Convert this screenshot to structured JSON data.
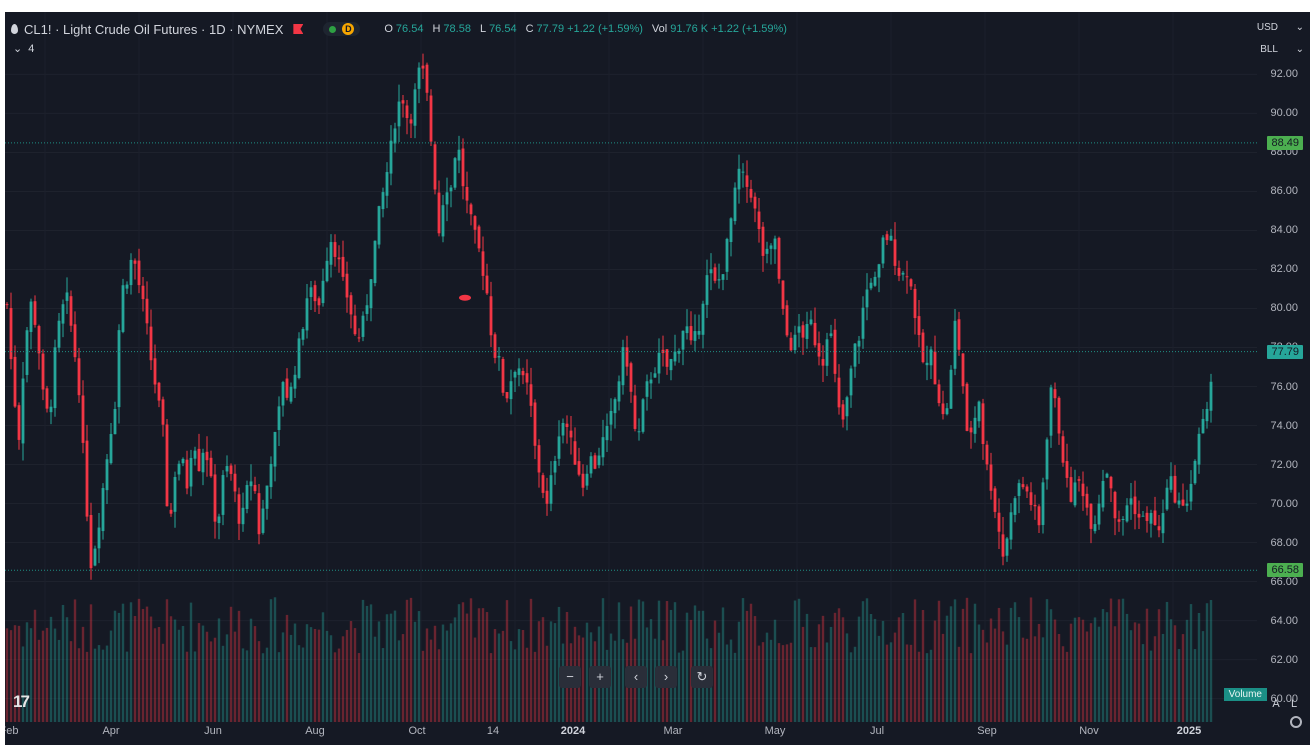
{
  "header": {
    "symbol_title": "CL1! · Light Crude Oil Futures · 1D · NYMEX",
    "status_badge": "D",
    "ohlc": {
      "open_label": "O",
      "open": "76.54",
      "high_label": "H",
      "high": "78.58",
      "low_label": "L",
      "low": "76.54",
      "close_label": "C",
      "close": "77.79",
      "change": "+1.22 (+1.59%)",
      "vol_label": "Vol",
      "volume": "91.76 K",
      "vol_change": "+1.22 (+1.59%)"
    },
    "indicator_count": "4"
  },
  "axis_controls": {
    "currency": "USD",
    "unit": "BLL"
  },
  "price_badges": {
    "resistance": "88.49",
    "current": "77.79",
    "support": "66.58"
  },
  "volume_label": "Volume",
  "scale_modes": {
    "auto": "A",
    "log": "L"
  },
  "nav_buttons": {
    "zoom_out": "−",
    "zoom_in": "+",
    "back": "‹",
    "forward": "›",
    "reset": "↻"
  },
  "logo_text": "17",
  "colors": {
    "up": "#26a69a",
    "down": "#f23645",
    "background": "#151924",
    "badge_green": "#4caf50",
    "hline": "#1f8f84"
  },
  "chart_data": {
    "type": "candlestick",
    "symbol": "CL1!",
    "ylim": [
      58.8,
      95.2
    ],
    "y_ticks": [
      "92.00",
      "90.00",
      "88.00",
      "86.00",
      "84.00",
      "82.00",
      "80.00",
      "78.00",
      "76.00",
      "74.00",
      "72.00",
      "70.00",
      "68.00",
      "66.00",
      "64.00",
      "62.00",
      "60.00"
    ],
    "x_ticks": [
      "Feb",
      "Apr",
      "Jun",
      "Aug",
      "Oct",
      "14",
      "2024",
      "Mar",
      "May",
      "Jul",
      "Sep",
      "Nov",
      "2025"
    ],
    "horizontal_lines": [
      88.49,
      77.79,
      66.58
    ],
    "close_path": [
      [
        0,
        80.2
      ],
      [
        6,
        76.0
      ],
      [
        12,
        73.5
      ],
      [
        18,
        78.3
      ],
      [
        24,
        80.2
      ],
      [
        30,
        79.0
      ],
      [
        36,
        75.5
      ],
      [
        42,
        74.2
      ],
      [
        48,
        77.6
      ],
      [
        54,
        79.8
      ],
      [
        60,
        80.4
      ],
      [
        66,
        78.4
      ],
      [
        72,
        76.0
      ],
      [
        78,
        71.0
      ],
      [
        84,
        67.0
      ],
      [
        90,
        68.4
      ],
      [
        96,
        70.8
      ],
      [
        102,
        73.2
      ],
      [
        108,
        75.2
      ],
      [
        114,
        80.8
      ],
      [
        120,
        81.6
      ],
      [
        126,
        82.8
      ],
      [
        132,
        81.2
      ],
      [
        138,
        79.6
      ],
      [
        144,
        77.4
      ],
      [
        150,
        75.6
      ],
      [
        156,
        73.6
      ],
      [
        162,
        68.4
      ],
      [
        168,
        71.6
      ],
      [
        174,
        72.4
      ],
      [
        180,
        71.0
      ],
      [
        186,
        73.6
      ],
      [
        192,
        72.0
      ],
      [
        198,
        73.2
      ],
      [
        204,
        71.0
      ],
      [
        210,
        68.6
      ],
      [
        216,
        71.2
      ],
      [
        222,
        72.0
      ],
      [
        228,
        70.4
      ],
      [
        234,
        68.8
      ],
      [
        240,
        70.6
      ],
      [
        246,
        71.6
      ],
      [
        252,
        68.6
      ],
      [
        258,
        70.2
      ],
      [
        264,
        72.4
      ],
      [
        270,
        73.8
      ],
      [
        276,
        76.4
      ],
      [
        282,
        75.2
      ],
      [
        288,
        77.0
      ],
      [
        294,
        78.6
      ],
      [
        300,
        80.6
      ],
      [
        306,
        80.8
      ],
      [
        312,
        80.2
      ],
      [
        318,
        82.4
      ],
      [
        324,
        83.6
      ],
      [
        330,
        82.8
      ],
      [
        336,
        81.2
      ],
      [
        342,
        80.4
      ],
      [
        348,
        78.6
      ],
      [
        354,
        78.6
      ],
      [
        360,
        80.4
      ],
      [
        366,
        82.6
      ],
      [
        372,
        84.8
      ],
      [
        378,
        86.4
      ],
      [
        384,
        88.2
      ],
      [
        390,
        90.4
      ],
      [
        396,
        90.8
      ],
      [
        402,
        89.4
      ],
      [
        408,
        91.0
      ],
      [
        414,
        92.6
      ],
      [
        420,
        90.8
      ],
      [
        426,
        87.6
      ],
      [
        432,
        84.0
      ],
      [
        438,
        86.4
      ],
      [
        444,
        86.2
      ],
      [
        450,
        88.8
      ],
      [
        456,
        86.4
      ],
      [
        462,
        84.8
      ],
      [
        468,
        83.6
      ],
      [
        474,
        82.6
      ],
      [
        480,
        80.8
      ],
      [
        486,
        78.0
      ],
      [
        492,
        77.2
      ],
      [
        498,
        75.2
      ],
      [
        504,
        76.4
      ],
      [
        510,
        77.4
      ],
      [
        516,
        76.2
      ],
      [
        522,
        75.8
      ],
      [
        528,
        72.8
      ],
      [
        534,
        71.2
      ],
      [
        540,
        69.8
      ],
      [
        546,
        71.8
      ],
      [
        552,
        73.8
      ],
      [
        558,
        74.4
      ],
      [
        564,
        73.0
      ],
      [
        570,
        72.0
      ],
      [
        576,
        71.0
      ],
      [
        582,
        72.4
      ],
      [
        588,
        72.0
      ],
      [
        594,
        73.0
      ],
      [
        600,
        73.6
      ],
      [
        606,
        74.8
      ],
      [
        612,
        76.4
      ],
      [
        618,
        78.2
      ],
      [
        624,
        75.6
      ],
      [
        630,
        72.8
      ],
      [
        636,
        75.0
      ],
      [
        642,
        76.4
      ],
      [
        648,
        77.0
      ],
      [
        654,
        77.6
      ],
      [
        660,
        77.0
      ],
      [
        666,
        77.4
      ],
      [
        672,
        78.2
      ],
      [
        678,
        79.4
      ],
      [
        684,
        78.0
      ],
      [
        690,
        78.6
      ],
      [
        696,
        80.6
      ],
      [
        702,
        82.0
      ],
      [
        708,
        81.2
      ],
      [
        714,
        81.6
      ],
      [
        720,
        83.2
      ],
      [
        726,
        85.2
      ],
      [
        732,
        87.0
      ],
      [
        738,
        86.4
      ],
      [
        744,
        86.0
      ],
      [
        750,
        84.4
      ],
      [
        756,
        82.8
      ],
      [
        762,
        82.6
      ],
      [
        768,
        83.6
      ],
      [
        774,
        80.2
      ],
      [
        780,
        78.6
      ],
      [
        786,
        78.0
      ],
      [
        792,
        79.0
      ],
      [
        798,
        78.6
      ],
      [
        804,
        79.2
      ],
      [
        810,
        78.0
      ],
      [
        816,
        77.4
      ],
      [
        822,
        79.6
      ],
      [
        828,
        76.4
      ],
      [
        834,
        73.8
      ],
      [
        840,
        75.2
      ],
      [
        846,
        77.6
      ],
      [
        852,
        78.6
      ],
      [
        858,
        80.6
      ],
      [
        864,
        81.6
      ],
      [
        870,
        81.2
      ],
      [
        876,
        83.4
      ],
      [
        882,
        83.8
      ],
      [
        888,
        82.6
      ],
      [
        894,
        81.6
      ],
      [
        900,
        82.0
      ],
      [
        906,
        80.6
      ],
      [
        912,
        78.2
      ],
      [
        918,
        76.8
      ],
      [
        924,
        77.6
      ],
      [
        930,
        76.0
      ],
      [
        936,
        74.4
      ],
      [
        942,
        75.4
      ],
      [
        948,
        79.2
      ],
      [
        954,
        77.4
      ],
      [
        960,
        73.4
      ],
      [
        966,
        74.0
      ],
      [
        972,
        75.4
      ],
      [
        978,
        72.2
      ],
      [
        984,
        71.0
      ],
      [
        990,
        69.2
      ],
      [
        996,
        67.4
      ],
      [
        1002,
        68.8
      ],
      [
        1008,
        70.6
      ],
      [
        1014,
        71.0
      ],
      [
        1020,
        70.6
      ],
      [
        1026,
        69.8
      ],
      [
        1032,
        68.8
      ],
      [
        1038,
        72.4
      ],
      [
        1044,
        76.0
      ],
      [
        1050,
        74.6
      ],
      [
        1056,
        72.4
      ],
      [
        1062,
        70.2
      ],
      [
        1068,
        70.8
      ],
      [
        1074,
        71.2
      ],
      [
        1080,
        69.8
      ],
      [
        1086,
        68.8
      ],
      [
        1092,
        70.2
      ],
      [
        1098,
        72.0
      ],
      [
        1104,
        71.0
      ],
      [
        1110,
        68.6
      ],
      [
        1116,
        69.2
      ],
      [
        1122,
        70.4
      ],
      [
        1128,
        69.8
      ],
      [
        1134,
        69.0
      ],
      [
        1140,
        69.4
      ],
      [
        1146,
        69.2
      ],
      [
        1152,
        68.4
      ],
      [
        1158,
        70.4
      ],
      [
        1164,
        71.0
      ],
      [
        1170,
        70.2
      ],
      [
        1176,
        69.6
      ],
      [
        1182,
        70.6
      ],
      [
        1188,
        72.2
      ],
      [
        1194,
        73.8
      ],
      [
        1200,
        74.4
      ],
      [
        1206,
        77.8
      ]
    ],
    "volume_range": [
      0.55,
      1.0
    ]
  }
}
